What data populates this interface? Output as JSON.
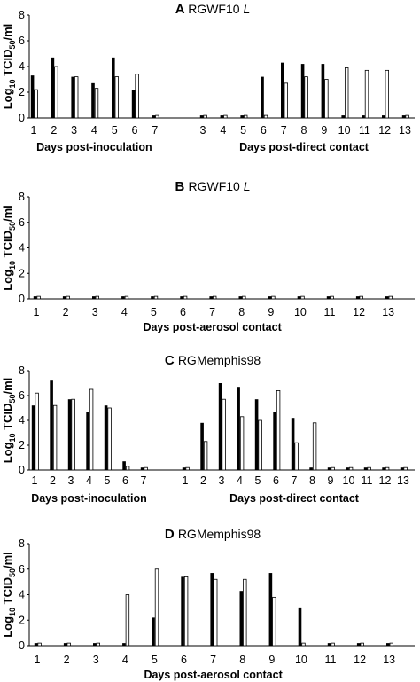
{
  "chart_data": [
    {
      "panel": "A",
      "title": "RGWF10 L",
      "type": "bar",
      "ylabel": "Log10 TCID50/ml",
      "ylim": [
        0,
        8
      ],
      "yticks": [
        0,
        2,
        4,
        6,
        8
      ],
      "groups": [
        {
          "xlabel": "Days post-inoculation",
          "categories": [
            "1",
            "2",
            "3",
            "4",
            "5",
            "6",
            "7"
          ],
          "series": [
            {
              "fill": "black",
              "values": [
                3.3,
                4.7,
                3.2,
                2.7,
                4.7,
                2.2,
                0.2
              ]
            },
            {
              "fill": "white",
              "values": [
                2.2,
                4.0,
                3.2,
                2.3,
                3.2,
                3.4,
                0.2
              ]
            }
          ]
        },
        {
          "xlabel": "Days post-direct contact",
          "categories": [
            "3",
            "4",
            "5",
            "6",
            "7",
            "8",
            "9",
            "10",
            "11",
            "12",
            "13"
          ],
          "series": [
            {
              "fill": "black",
              "values": [
                0.2,
                0.2,
                0.2,
                3.2,
                4.3,
                4.2,
                4.2,
                0.2,
                0.2,
                0.2,
                0.2
              ]
            },
            {
              "fill": "white",
              "values": [
                0.2,
                0.2,
                0.2,
                0.2,
                2.7,
                3.2,
                3.0,
                3.9,
                3.7,
                3.7,
                0.2
              ]
            }
          ]
        }
      ]
    },
    {
      "panel": "B",
      "title": "RGWF10 L",
      "type": "bar",
      "ylabel": "Log10 TCID50/ml",
      "ylim": [
        0,
        8
      ],
      "yticks": [
        0,
        2,
        4,
        6,
        8
      ],
      "groups": [
        {
          "xlabel": "Days post-aerosol contact",
          "categories": [
            "1",
            "2",
            "3",
            "4",
            "5",
            "6",
            "7",
            "8",
            "9",
            "10",
            "11",
            "12",
            "13"
          ],
          "series": [
            {
              "fill": "black",
              "values": [
                0.2,
                0.2,
                0.2,
                0.2,
                0.2,
                0.2,
                0.2,
                0.2,
                0.2,
                0.2,
                0.2,
                0.2,
                0.2
              ]
            },
            {
              "fill": "white",
              "values": [
                0.2,
                0.2,
                0.2,
                0.2,
                0.2,
                0.2,
                0.2,
                0.2,
                0.2,
                0.2,
                0.2,
                0.2,
                0.2
              ]
            }
          ]
        }
      ]
    },
    {
      "panel": "C",
      "title": "RGMemphis98",
      "type": "bar",
      "ylabel": "Log10 TCID50/ml",
      "ylim": [
        0,
        8
      ],
      "yticks": [
        0,
        2,
        4,
        6,
        8
      ],
      "groups": [
        {
          "xlabel": "Days post-inoculation",
          "categories": [
            "1",
            "2",
            "3",
            "4",
            "5",
            "6",
            "7"
          ],
          "series": [
            {
              "fill": "black",
              "values": [
                5.2,
                7.2,
                5.7,
                4.7,
                5.2,
                0.7,
                0.2
              ]
            },
            {
              "fill": "white",
              "values": [
                6.2,
                5.2,
                5.7,
                6.5,
                5.0,
                0.3,
                0.2
              ]
            }
          ]
        },
        {
          "xlabel": "Days post-direct contact",
          "categories": [
            "1",
            "2",
            "3",
            "4",
            "5",
            "6",
            "7",
            "8",
            "9",
            "10",
            "11",
            "12",
            "13"
          ],
          "series": [
            {
              "fill": "black",
              "values": [
                0.2,
                3.8,
                7.0,
                6.7,
                5.7,
                4.7,
                4.2,
                0.2,
                0.2,
                0.2,
                0.2,
                0.2,
                0.2
              ]
            },
            {
              "fill": "white",
              "values": [
                0.2,
                2.3,
                5.7,
                4.3,
                4.0,
                6.4,
                2.2,
                3.8,
                0.2,
                0.2,
                0.2,
                0.2,
                0.2
              ]
            }
          ]
        }
      ]
    },
    {
      "panel": "D",
      "title": "RGMemphis98",
      "type": "bar",
      "ylabel": "Log10 TCID50/ml",
      "ylim": [
        0,
        8
      ],
      "yticks": [
        0,
        2,
        4,
        6,
        8
      ],
      "groups": [
        {
          "xlabel": "Days post-aerosol contact",
          "categories": [
            "1",
            "2",
            "3",
            "4",
            "5",
            "6",
            "7",
            "8",
            "9",
            "10",
            "11",
            "12",
            "13"
          ],
          "series": [
            {
              "fill": "black",
              "values": [
                0.2,
                0.2,
                0.2,
                0.2,
                2.2,
                5.4,
                5.7,
                4.3,
                5.7,
                3.0,
                0.2,
                0.2,
                0.2
              ]
            },
            {
              "fill": "white",
              "values": [
                0.2,
                0.2,
                0.2,
                4.0,
                6.0,
                5.4,
                5.2,
                5.2,
                3.8,
                0.2,
                0.2,
                0.2,
                0.2
              ]
            }
          ]
        }
      ]
    }
  ]
}
